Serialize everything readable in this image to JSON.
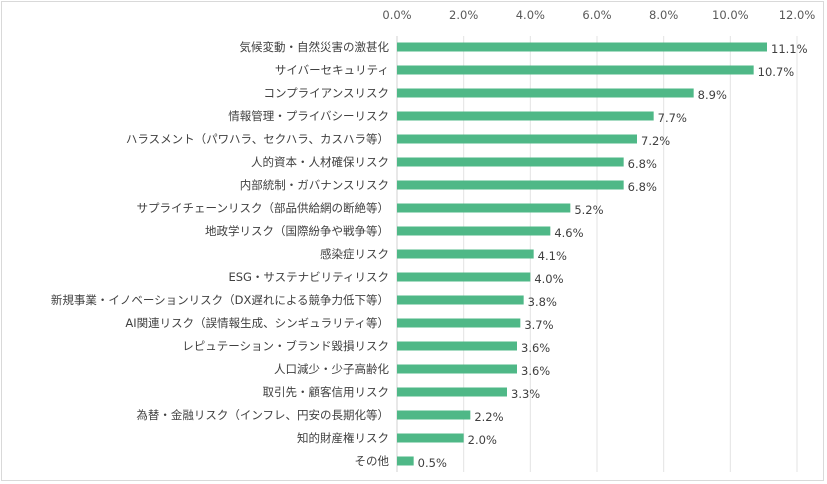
{
  "chart_data": {
    "type": "bar",
    "orientation": "horizontal",
    "title": "",
    "xlabel": "",
    "ylabel": "",
    "xlim": [
      0,
      12
    ],
    "x_ticks": [
      "0.0%",
      "2.0%",
      "4.0%",
      "6.0%",
      "8.0%",
      "10.0%",
      "12.0%"
    ],
    "grid": true,
    "color": "#4fb887",
    "categories": [
      "気候変動・自然災害の激甚化",
      "サイバーセキュリティ",
      "コンプライアンスリスク",
      "情報管理・プライバシーリスク",
      "ハラスメント（パワハラ、セクハラ、カスハラ等）",
      "人的資本・人材確保リスク",
      "内部統制・ガバナンスリスク",
      "サプライチェーンリスク（部品供給網の断絶等）",
      "地政学リスク（国際紛争や戦争等）",
      "感染症リスク",
      "ESG・サステナビリティリスク",
      "新規事業・イノベーションリスク（DX遅れによる競争力低下等）",
      "AI関連リスク（誤情報生成、シンギュラリティ等）",
      "レピュテーション・ブランド毀損リスク",
      "人口減少・少子高齢化",
      "取引先・顧客信用リスク",
      "為替・金融リスク（インフレ、円安の長期化等）",
      "知的財産権リスク",
      "その他"
    ],
    "values": [
      11.1,
      10.7,
      8.9,
      7.7,
      7.2,
      6.8,
      6.8,
      5.2,
      4.6,
      4.1,
      4.0,
      3.8,
      3.7,
      3.6,
      3.6,
      3.3,
      2.2,
      2.0,
      0.5
    ],
    "value_labels": [
      "11.1%",
      "10.7%",
      "8.9%",
      "7.7%",
      "7.2%",
      "6.8%",
      "6.8%",
      "5.2%",
      "4.6%",
      "4.1%",
      "4.0%",
      "3.8%",
      "3.7%",
      "3.6%",
      "3.6%",
      "3.3%",
      "2.2%",
      "2.0%",
      "0.5%"
    ]
  }
}
